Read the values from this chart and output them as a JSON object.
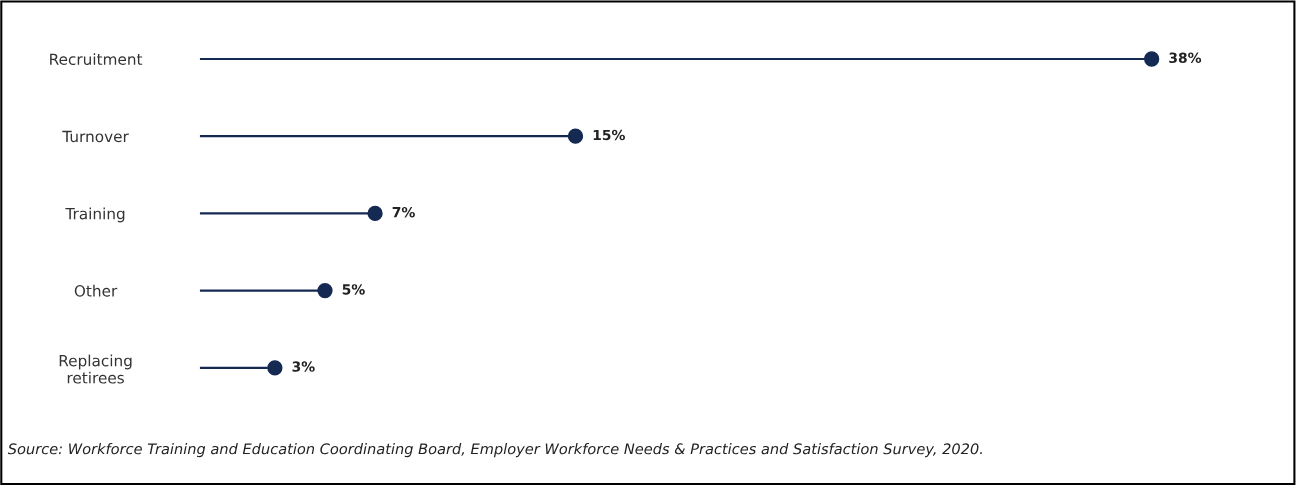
{
  "chart_data": {
    "type": "lollipop",
    "orientation": "horizontal",
    "categories": [
      "Recruitment",
      "Turnover",
      "Training",
      "Other",
      "Replacing\nretirees"
    ],
    "values": [
      38,
      15,
      7,
      5,
      3
    ],
    "value_labels": [
      "38%",
      "15%",
      "7%",
      "5%",
      "3%"
    ],
    "color": "#152a52",
    "marker": "circle",
    "grid": false,
    "legend": false,
    "tick_labels": "y",
    "annotations": [
      "Source: Workforce Training and Education Coordinating Board, Employer Workforce Needs & Practices and Satisfaction Survey, 2020."
    ]
  }
}
